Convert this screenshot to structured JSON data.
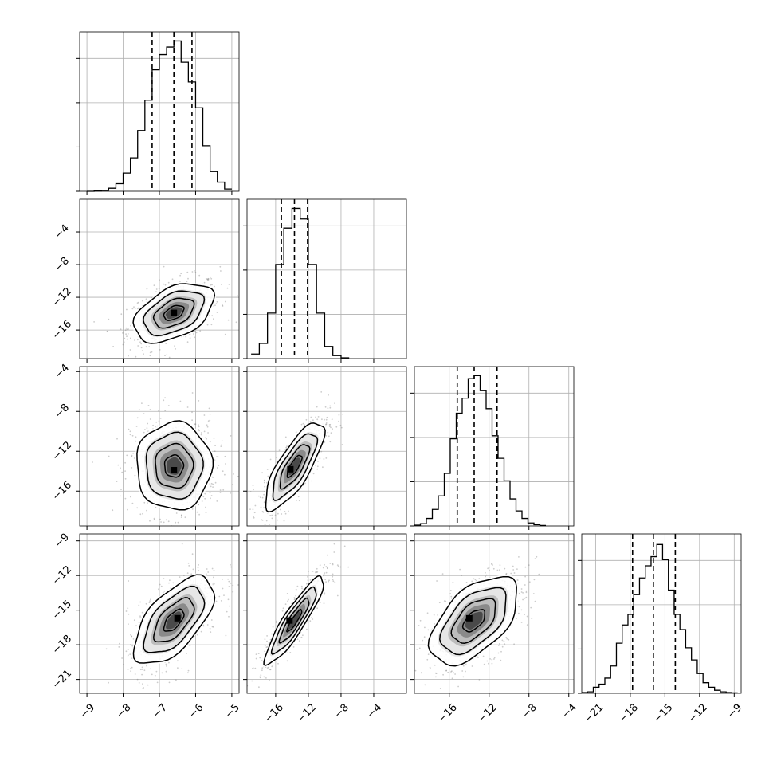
{
  "colors": {
    "axes": "#000000",
    "grid": "#b0b0b0",
    "hist": "#000000",
    "quantile": "#000000",
    "scatter": "#808080",
    "density_dark": "#000000",
    "background": "#ffffff"
  },
  "chart_data": {
    "type": "corner",
    "title": "",
    "grid": true,
    "quantile_line_style": "dashed",
    "parameters": [
      {
        "range": [
          -9.2,
          -4.8
        ],
        "ticks": [
          -9,
          -8,
          -7,
          -6,
          -5
        ],
        "tick_labels": [
          "−9",
          "−8",
          "−7",
          "−6",
          "−5"
        ],
        "quantiles": [
          -7.2,
          -6.6,
          -6.1
        ],
        "hist": {
          "type": "step",
          "edges": [
            -9.0,
            -8.8,
            -8.6,
            -8.4,
            -8.2,
            -8.0,
            -7.8,
            -7.6,
            -7.4,
            -7.2,
            -7.0,
            -6.8,
            -6.6,
            -6.4,
            -6.2,
            -6.0,
            -5.8,
            -5.6,
            -5.4,
            -5.2,
            -5.0
          ],
          "values": [
            0,
            0.2,
            0.6,
            2,
            5,
            12,
            22,
            40,
            60,
            80,
            90,
            95,
            99,
            85,
            72,
            55,
            30,
            13,
            6,
            1.5
          ],
          "ymax": 105
        }
      },
      {
        "range": [
          -19.5,
          0.0
        ],
        "ticks": [
          -16,
          -12,
          -8,
          -4
        ],
        "tick_labels": [
          "−16",
          "−12",
          "−8",
          "−4"
        ],
        "quantiles": [
          -15.3,
          -13.7,
          -12.1
        ],
        "hist": {
          "type": "step",
          "edges": [
            -19,
            -18,
            -17,
            -16,
            -15,
            -14,
            -13,
            -12,
            -11,
            -10,
            -9,
            -8,
            -7
          ],
          "values": [
            3,
            10,
            30,
            62,
            86,
            99,
            92,
            62,
            30,
            8,
            2,
            0.5
          ],
          "ymax": 105
        }
      },
      {
        "range": [
          -19.5,
          -3.5
        ],
        "ticks": [
          -16,
          -12,
          -8,
          -4
        ],
        "tick_labels": [
          "−16",
          "−12",
          "−8",
          "−4"
        ],
        "quantiles": [
          -15.2,
          -13.5,
          -11.2
        ],
        "hist": {
          "type": "step",
          "edges": [
            -19.5,
            -18.9,
            -18.3,
            -17.7,
            -17.1,
            -16.5,
            -15.9,
            -15.3,
            -14.7,
            -14.1,
            -13.5,
            -12.9,
            -12.3,
            -11.7,
            -11.1,
            -10.5,
            -9.9,
            -9.3,
            -8.7,
            -8.1,
            -7.5,
            -6.9,
            -6.3
          ],
          "values": [
            0.5,
            1.5,
            5,
            11,
            20,
            35,
            58,
            75,
            85,
            98,
            100,
            90,
            78,
            60,
            45,
            30,
            18,
            10,
            5,
            2,
            0.8,
            0.3
          ],
          "ymax": 106
        }
      },
      {
        "range": [
          -22.2,
          -8.4
        ],
        "ticks": [
          -21,
          -18,
          -15,
          -12,
          -9
        ],
        "tick_labels": [
          "−21",
          "−18",
          "−15",
          "−12",
          "−9"
        ],
        "quantiles": [
          -17.8,
          -16.0,
          -14.1
        ],
        "hist": {
          "type": "step",
          "edges": [
            -22.2,
            -21.7,
            -21.2,
            -20.7,
            -20.2,
            -19.7,
            -19.2,
            -18.7,
            -18.2,
            -17.7,
            -17.2,
            -16.7,
            -16.2,
            -15.7,
            -15.2,
            -14.7,
            -14.2,
            -13.7,
            -13.2,
            -12.7,
            -12.2,
            -11.7,
            -11.2,
            -10.7,
            -10.2,
            -9.7,
            -9.2,
            -8.7
          ],
          "values": [
            0.5,
            1,
            4,
            6,
            10,
            18,
            33,
            45,
            52,
            65,
            76,
            84,
            90,
            98,
            88,
            68,
            52,
            42,
            30,
            22,
            13,
            7,
            4,
            2,
            1,
            0.5,
            0.3
          ],
          "ymax": 105
        }
      }
    ],
    "pairs": [
      {
        "x": 0,
        "y": 1,
        "mean": [
          -6.6,
          -13.9
        ],
        "sd": [
          0.55,
          1.8
        ],
        "corr": 0.45,
        "peak": [
          -6.6,
          -13.9
        ],
        "levels": [
          0.5,
          1.0,
          1.5,
          2.0
        ]
      },
      {
        "x": 0,
        "y": 2,
        "mean": [
          -6.6,
          -13.5
        ],
        "sd": [
          0.52,
          2.2
        ],
        "corr": 0.0,
        "peak": [
          -6.6,
          -13.9
        ],
        "levels": [
          0.5,
          1.0,
          1.5,
          2.0
        ]
      },
      {
        "x": 1,
        "y": 2,
        "mean": [
          -13.7,
          -13.5
        ],
        "sd": [
          1.8,
          2.2
        ],
        "corr": 0.78,
        "peak": [
          -14.2,
          -13.8
        ],
        "levels": [
          0.5,
          1.0,
          1.5,
          2.0
        ]
      },
      {
        "x": 0,
        "y": 3,
        "mean": [
          -6.6,
          -15.9
        ],
        "sd": [
          0.55,
          1.9
        ],
        "corr": 0.62,
        "peak": [
          -6.5,
          -15.7
        ],
        "levels": [
          0.5,
          1.0,
          1.5,
          2.0
        ]
      },
      {
        "x": 1,
        "y": 3,
        "mean": [
          -13.7,
          -15.9
        ],
        "sd": [
          1.8,
          1.9
        ],
        "corr": 0.9,
        "peak": [
          -14.3,
          -15.9
        ],
        "levels": [
          0.5,
          1.0,
          1.5,
          2.0
        ]
      },
      {
        "x": 2,
        "y": 3,
        "mean": [
          -13.5,
          -15.9
        ],
        "sd": [
          2.2,
          1.9
        ],
        "corr": 0.55,
        "peak": [
          -14.0,
          -15.7
        ],
        "levels": [
          0.5,
          1.0,
          1.5,
          2.0
        ]
      }
    ]
  }
}
